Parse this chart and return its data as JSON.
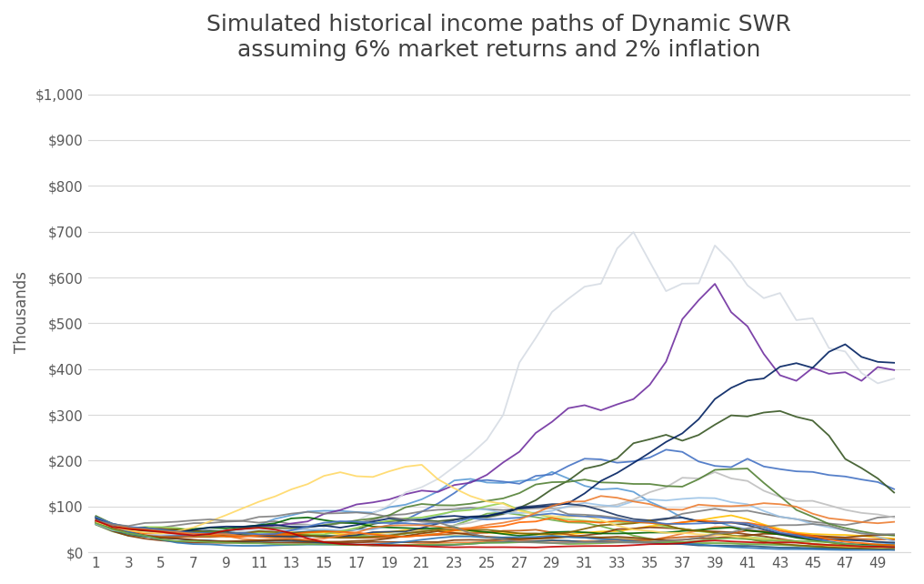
{
  "title": "Simulated historical income paths of Dynamic SWR\nassuming 6% market returns and 2% inflation",
  "ylabel": "Thousands",
  "x_ticks": [
    1,
    3,
    5,
    7,
    9,
    11,
    13,
    15,
    17,
    19,
    21,
    23,
    25,
    27,
    29,
    31,
    33,
    35,
    37,
    39,
    41,
    43,
    45,
    47,
    49
  ],
  "ylim": [
    0,
    1050
  ],
  "yticks": [
    0,
    100,
    200,
    300,
    400,
    500,
    600,
    700,
    800,
    900,
    1000
  ],
  "num_paths": 30,
  "num_years": 50,
  "background_color": "#ffffff",
  "grid_color": "#d9d9d9",
  "title_fontsize": 18,
  "axis_label_fontsize": 12,
  "tick_fontsize": 11,
  "colors": [
    "#5b9bd5",
    "#ed7d31",
    "#a9d18e",
    "#ffc000",
    "#70ad47",
    "#4472c4",
    "#843c0c",
    "#7f7f7f",
    "#bfbfbf",
    "#1f4e79",
    "#7030a0",
    "#375623",
    "#c55a11",
    "#9dc3e6",
    "#92d050",
    "#d6dce4",
    "#833c00",
    "#006400",
    "#203864",
    "#7f6000",
    "#ff6600",
    "#2e75b6",
    "#538135",
    "#ffd966",
    "#002060",
    "#4472c4",
    "#ed7d31",
    "#70ad47",
    "#808080",
    "#c00000"
  ]
}
